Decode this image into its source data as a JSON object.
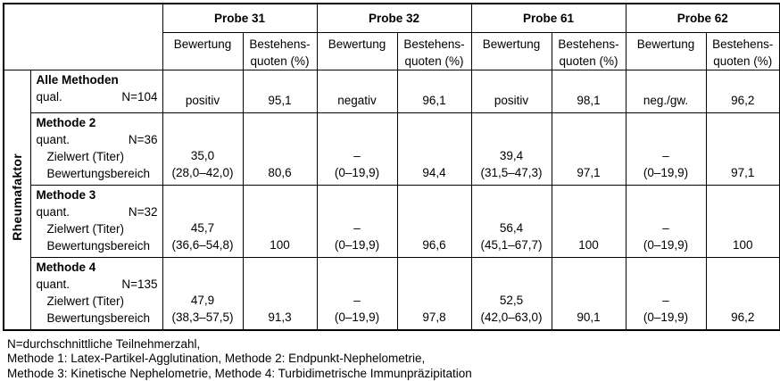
{
  "table": {
    "row_group": "Rheumafaktor",
    "probes": [
      "Probe 31",
      "Probe 32",
      "Probe 61",
      "Probe 62"
    ],
    "subheaders": {
      "bewertung": "Bewertung",
      "quote": "Bestehens-\nquoten (%)"
    },
    "rows": [
      {
        "title": "Alle Methoden",
        "type": "qual.",
        "n": "N=104",
        "cells": [
          {
            "bewertung": "positiv",
            "quote": "95,1"
          },
          {
            "bewertung": "negativ",
            "quote": "96,1"
          },
          {
            "bewertung": "positiv",
            "quote": "98,1"
          },
          {
            "bewertung": "neg./gw.",
            "quote": "96,2"
          }
        ]
      },
      {
        "title": "Methode 2",
        "type": "quant.",
        "n": "N=36",
        "line3": "Zielwert (Titer)",
        "line4": "Bewertungsbereich",
        "cells": [
          {
            "bewertung": "35,0\n(28,0–42,0)",
            "quote": "80,6"
          },
          {
            "bewertung": "–\n(0–19,9)",
            "quote": "94,4"
          },
          {
            "bewertung": "39,4\n(31,5–47,3)",
            "quote": "97,1"
          },
          {
            "bewertung": "–\n(0–19,9)",
            "quote": "97,1"
          }
        ]
      },
      {
        "title": "Methode 3",
        "type": "quant.",
        "n": "N=32",
        "line3": "Zielwert (Titer)",
        "line4": "Bewertungsbereich",
        "cells": [
          {
            "bewertung": "45,7\n(36,6–54,8)",
            "quote": "100"
          },
          {
            "bewertung": "–\n(0–19,9)",
            "quote": "96,6"
          },
          {
            "bewertung": "56,4\n(45,1–67,7)",
            "quote": "100"
          },
          {
            "bewertung": "–\n(0–19,9)",
            "quote": "100"
          }
        ]
      },
      {
        "title": "Methode 4",
        "type": "quant.",
        "n": "N=135",
        "line3": "Zielwert (Titer)",
        "line4": "Bewertungsbereich",
        "cells": [
          {
            "bewertung": "47,9\n(38,3–57,5)",
            "quote": "91,3"
          },
          {
            "bewertung": "–\n(0–19,9)",
            "quote": "97,8"
          },
          {
            "bewertung": "52,5\n(42,0–63,0)",
            "quote": "90,1"
          },
          {
            "bewertung": "–\n(0–19,9)",
            "quote": "96,2"
          }
        ]
      }
    ]
  },
  "footnotes": [
    "N=durchschnittliche Teilnehmerzahl,",
    "Methode 1: Latex-Partikel-Agglutination, Methode 2: Endpunkt-Nephelometrie,",
    "Methode 3: Kinetische Nephelometrie, Methode 4: Turbidimetrische Immunpräzipitation"
  ]
}
